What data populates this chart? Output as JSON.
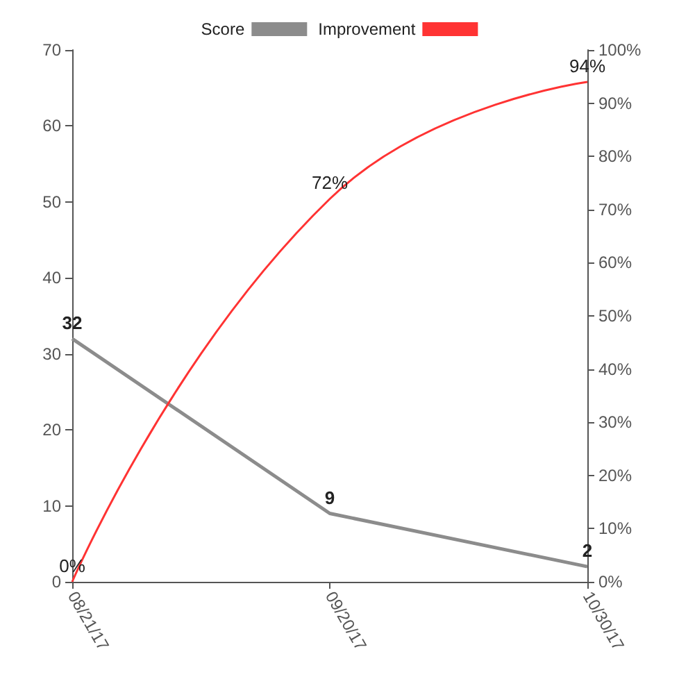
{
  "chart_data": {
    "type": "line",
    "categories": [
      "08/21/17",
      "09/20/17",
      "10/30/17"
    ],
    "series": [
      {
        "name": "Score",
        "color": "#8c8c8c",
        "values": [
          32,
          9,
          2
        ],
        "value_labels": [
          "32",
          "9",
          "2"
        ]
      },
      {
        "name": "Improvement",
        "color": "#ff3333",
        "values": [
          0,
          72,
          94
        ],
        "axis": "y2",
        "value_labels": [
          "0%",
          "72%",
          "94%"
        ]
      }
    ],
    "ylim": [
      0,
      70
    ],
    "yticks": [
      0,
      10,
      20,
      30,
      40,
      50,
      60,
      70
    ],
    "y2lim": [
      0,
      100
    ],
    "y2ticks": [
      {
        "value": 0,
        "label": "0%"
      },
      {
        "value": 10,
        "label": "10%"
      },
      {
        "value": 20,
        "label": "20%"
      },
      {
        "value": 30,
        "label": "30%"
      },
      {
        "value": 40,
        "label": "40%"
      },
      {
        "value": 50,
        "label": "50%"
      },
      {
        "value": 60,
        "label": "60%"
      },
      {
        "value": 70,
        "label": "70%"
      },
      {
        "value": 80,
        "label": "80%"
      },
      {
        "value": 90,
        "label": "90%"
      },
      {
        "value": 100,
        "label": "100%"
      }
    ],
    "grid": false,
    "legend": "top",
    "marker": "none",
    "line_style": "solid"
  }
}
